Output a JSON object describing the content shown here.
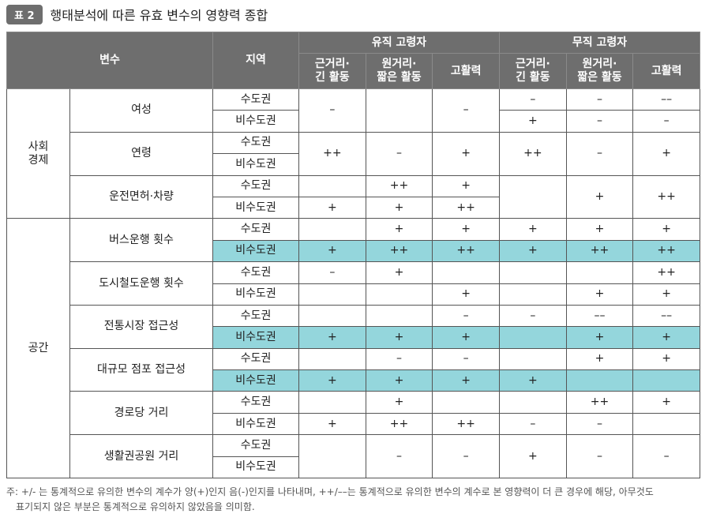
{
  "title": {
    "badge": "표 2",
    "text": "행태분석에 따른 유효 변수의 영향력 종합"
  },
  "header": {
    "variable": "변수",
    "region": "지역",
    "employed": "유직 고령자",
    "unemployed": "무직 고령자",
    "col_near": "근거리·\n긴 활동",
    "col_far": "원거리·\n짧은 활동",
    "col_iso": "고활력"
  },
  "groups": {
    "socio": "사회\n경제",
    "space": "공간"
  },
  "variables": {
    "female": "여성",
    "age": "연령",
    "license": "운전면허·차량",
    "bus": "버스운행 횟수",
    "rail": "도시철도운행 횟수",
    "market": "전통시장 접근성",
    "store": "대규모 점포 접근성",
    "senior": "경로당 거리",
    "park": "생활권공원 거리"
  },
  "regions": {
    "metro": "수도권",
    "nonmetro": "비수도권"
  },
  "cells": {
    "female": {
      "e1": "–",
      "e3": "–",
      "u1m": "–",
      "u1n": "+",
      "u2m": "–",
      "u2n": "–",
      "u3m": "––",
      "u3n": "–"
    },
    "age": {
      "e1": "++",
      "e2": "–",
      "e3": "+",
      "u1": "++",
      "u2": "–",
      "u3": "+"
    },
    "license": {
      "e2m": "++",
      "e3m": "+",
      "e1n": "+",
      "e2n": "+",
      "e3n": "++",
      "u2": "+",
      "u3": "++"
    },
    "bus_m": [
      "",
      "+",
      "+",
      "+",
      "+",
      "+"
    ],
    "bus_n": [
      "+",
      "++",
      "++",
      "+",
      "++",
      "++"
    ],
    "rail_m": [
      "–",
      "+",
      "",
      "",
      "",
      "++"
    ],
    "rail_n": [
      "",
      "",
      "+",
      "",
      "+",
      "+"
    ],
    "market_m": [
      "",
      "",
      "–",
      "–",
      "––",
      "––"
    ],
    "market_n": [
      "+",
      "+",
      "+",
      "",
      "+",
      "+"
    ],
    "store_m": [
      "",
      "–",
      "–",
      "",
      "+",
      "+"
    ],
    "store_n": [
      "+",
      "+",
      "+",
      "+",
      "",
      ""
    ],
    "senior_m": [
      "",
      "+",
      "",
      "",
      "++",
      "+"
    ],
    "senior_n": [
      "+",
      "++",
      "++",
      "–",
      "–",
      ""
    ],
    "park": [
      "",
      "–",
      "–",
      "+",
      "–",
      "–"
    ]
  },
  "note": {
    "line1": "주: +/- 는 통계적으로 유의한 변수의 계수가 양(+)인지 음(-)인지를 나타내며, ++/––는 통계적으로 유의한 변수의 계수로 본 영향력이 더 큰 경우에 해당, 아무것도",
    "line2": "표기되지 않은 부분은 통계적으로 유의하지 않았음을 의미함."
  }
}
